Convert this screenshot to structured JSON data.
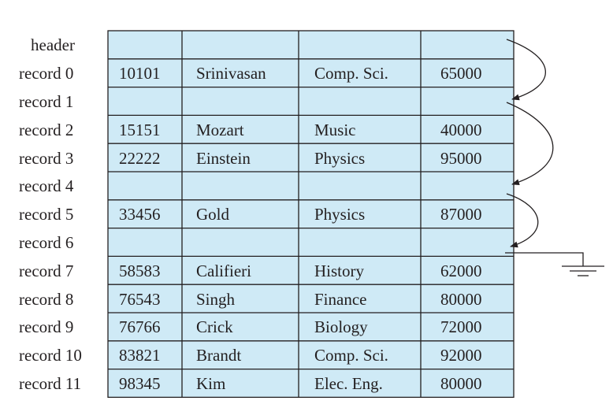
{
  "file": {
    "rows": [
      {
        "label": "header",
        "cells": [
          "",
          "",
          "",
          ""
        ]
      },
      {
        "label": "record 0",
        "cells": [
          "10101",
          "Srinivasan",
          "Comp. Sci.",
          "65000"
        ]
      },
      {
        "label": "record 1",
        "cells": [
          "",
          "",
          "",
          ""
        ]
      },
      {
        "label": "record 2",
        "cells": [
          "15151",
          "Mozart",
          "Music",
          "40000"
        ]
      },
      {
        "label": "record 3",
        "cells": [
          "22222",
          "Einstein",
          "Physics",
          "95000"
        ]
      },
      {
        "label": "record 4",
        "cells": [
          "",
          "",
          "",
          ""
        ]
      },
      {
        "label": "record 5",
        "cells": [
          "33456",
          "Gold",
          "Physics",
          "87000"
        ]
      },
      {
        "label": "record 6",
        "cells": [
          "",
          "",
          "",
          ""
        ]
      },
      {
        "label": "record 7",
        "cells": [
          "58583",
          "Califieri",
          "History",
          "62000"
        ]
      },
      {
        "label": "record 8",
        "cells": [
          "76543",
          "Singh",
          "Finance",
          "80000"
        ]
      },
      {
        "label": "record 9",
        "cells": [
          "76766",
          "Crick",
          "Biology",
          "72000"
        ]
      },
      {
        "label": "record 10",
        "cells": [
          "83821",
          "Brandt",
          "Comp. Sci.",
          "92000"
        ]
      },
      {
        "label": "record 11",
        "cells": [
          "98345",
          "Kim",
          "Elec. Eng.",
          "80000"
        ]
      }
    ],
    "free_list": [
      {
        "from": "header",
        "to": "record 1"
      },
      {
        "from": "record 1",
        "to": "record 4"
      },
      {
        "from": "record 4",
        "to": "record 6"
      },
      {
        "from": "record 6",
        "to": "null"
      }
    ],
    "colors": {
      "cell_fill": "#cfeaf6",
      "line": "#231f20"
    }
  }
}
